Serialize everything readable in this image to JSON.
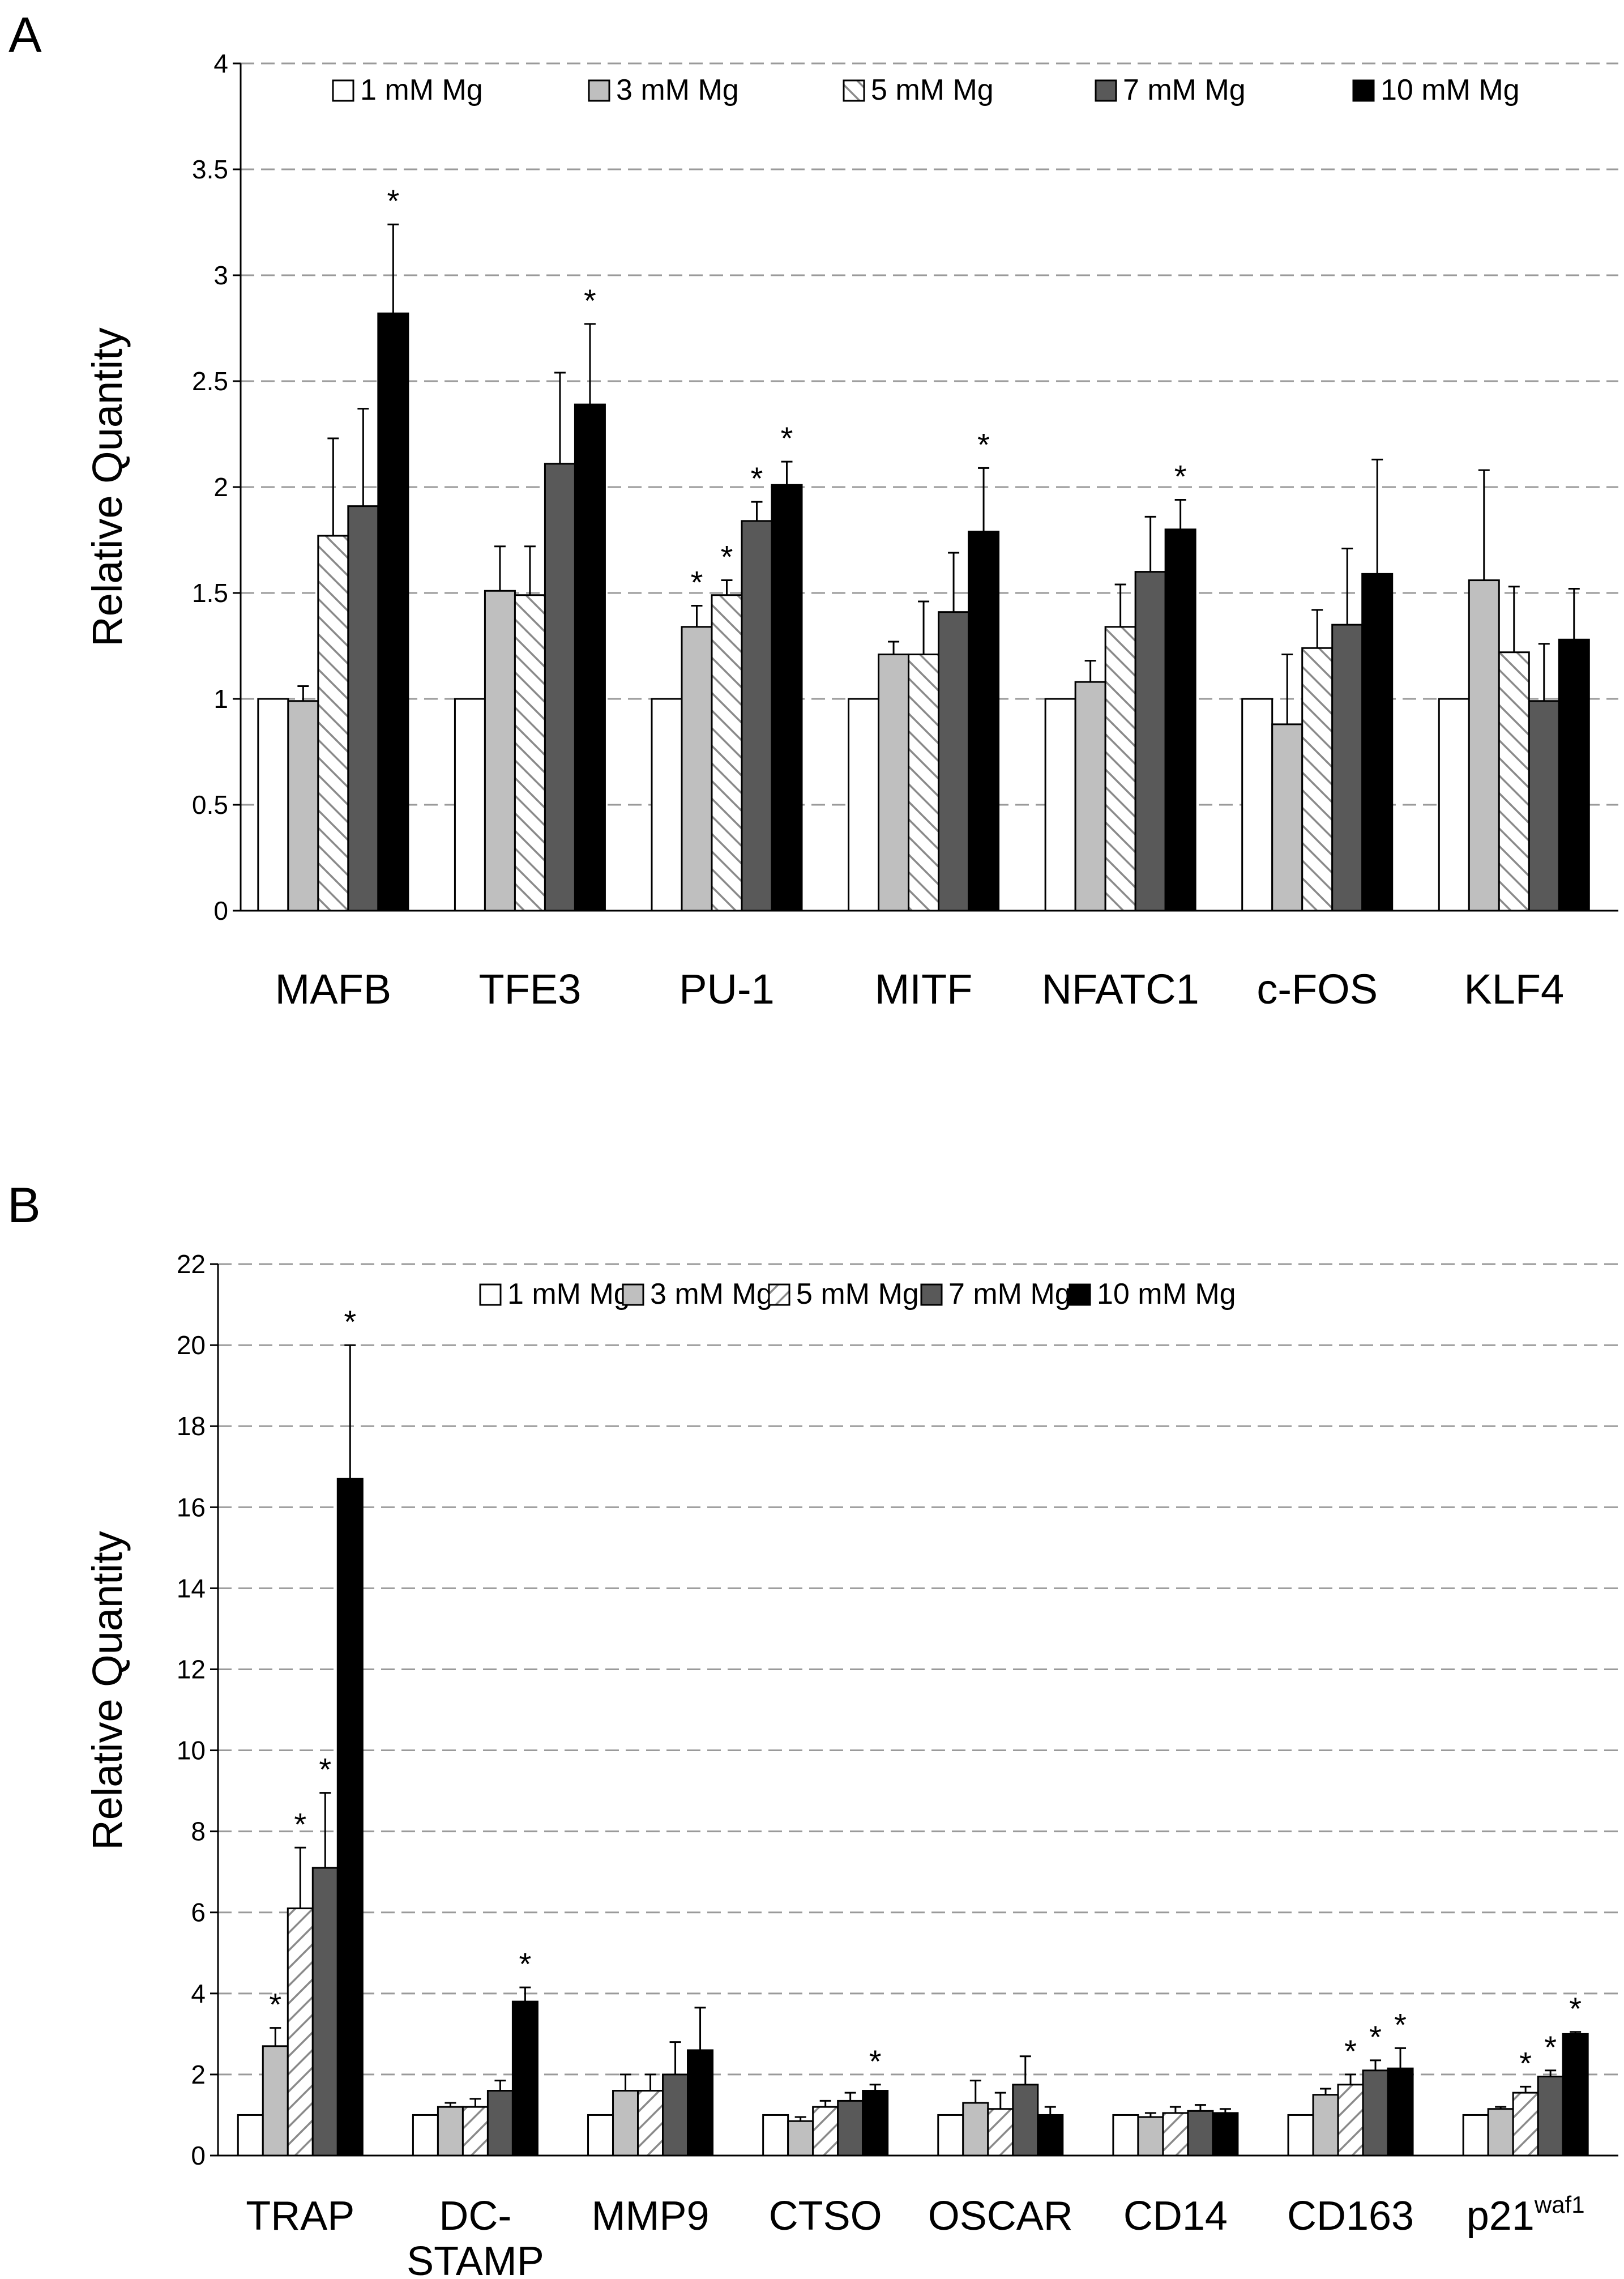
{
  "colors": {
    "1 mM Mg": "#ffffff",
    "3 mM Mg": "#bfbfbf",
    "5 mM Mg": "hatch",
    "7 mM Mg": "#595959",
    "10 mM Mg": "#000000",
    "grid": "#9a9a9a",
    "axis": "#000000"
  },
  "chart_data": [
    {
      "panel": "A",
      "type": "bar",
      "ylabel": "Relative Quantity",
      "ylim": [
        0,
        4
      ],
      "yticks": [
        "0",
        "0.5",
        "1",
        "1.5",
        "2",
        "2.5",
        "3",
        "3.5",
        "4"
      ],
      "grid": true,
      "legend": "top",
      "categories": [
        "MAFB",
        "TFE3",
        "PU-1",
        "MITF",
        "NFATC1",
        "c-FOS",
        "KLF4"
      ],
      "series": [
        {
          "name": "1 mM Mg",
          "values": [
            1,
            1,
            1,
            1,
            1,
            1,
            1
          ],
          "errors": [
            0,
            0,
            0,
            0,
            0,
            0,
            0
          ],
          "sig": [
            false,
            false,
            false,
            false,
            false,
            false,
            false
          ]
        },
        {
          "name": "3 mM Mg",
          "values": [
            0.99,
            1.51,
            1.34,
            1.21,
            1.08,
            0.88,
            1.56
          ],
          "errors": [
            0.07,
            0.21,
            0.1,
            0.06,
            0.1,
            0.33,
            0.52
          ],
          "sig": [
            false,
            false,
            true,
            false,
            false,
            false,
            false
          ]
        },
        {
          "name": "5 mM Mg",
          "values": [
            1.77,
            1.49,
            1.49,
            1.21,
            1.34,
            1.24,
            1.22
          ],
          "errors": [
            0.46,
            0.23,
            0.07,
            0.25,
            0.2,
            0.18,
            0.31
          ],
          "sig": [
            false,
            false,
            true,
            false,
            false,
            false,
            false
          ]
        },
        {
          "name": "7 mM Mg",
          "values": [
            1.91,
            2.11,
            1.84,
            1.41,
            1.6,
            1.35,
            0.99
          ],
          "errors": [
            0.46,
            0.43,
            0.09,
            0.28,
            0.26,
            0.36,
            0.27
          ],
          "sig": [
            false,
            false,
            true,
            false,
            false,
            false,
            false
          ]
        },
        {
          "name": "10 mM Mg",
          "values": [
            2.82,
            2.39,
            2.01,
            1.79,
            1.8,
            1.59,
            1.28
          ],
          "errors": [
            0.42,
            0.38,
            0.11,
            0.3,
            0.14,
            0.54,
            0.24
          ],
          "sig": [
            true,
            true,
            true,
            true,
            true,
            false,
            false
          ]
        }
      ]
    },
    {
      "panel": "B",
      "type": "bar",
      "ylabel": "Relative Quantity",
      "ylim": [
        0,
        22
      ],
      "yticks": [
        "0",
        "2",
        "4",
        "6",
        "8",
        "10",
        "12",
        "14",
        "16",
        "18",
        "20",
        "22"
      ],
      "grid": true,
      "legend": "top",
      "categories": [
        "TRAP",
        "DC-STAMP",
        "MMP9",
        "CTSO",
        "OSCAR",
        "CD14",
        "CD163",
        "p21waf1"
      ],
      "category_lines": [
        [
          "TRAP"
        ],
        [
          "DC-",
          "STAMP"
        ],
        [
          "MMP9"
        ],
        [
          "CTSO"
        ],
        [
          "OSCAR"
        ],
        [
          "CD14"
        ],
        [
          "CD163"
        ],
        [
          "p21"
        ]
      ],
      "category_superscripts": [
        "",
        "",
        "",
        "",
        "",
        "",
        "",
        "waf1"
      ],
      "series": [
        {
          "name": "1 mM Mg",
          "values": [
            1,
            1,
            1,
            1,
            1,
            1,
            1,
            1
          ],
          "errors": [
            0,
            0,
            0,
            0,
            0,
            0,
            0,
            0
          ],
          "sig": [
            false,
            false,
            false,
            false,
            false,
            false,
            false,
            false
          ]
        },
        {
          "name": "3 mM Mg",
          "values": [
            2.7,
            1.2,
            1.6,
            0.85,
            1.3,
            0.95,
            1.5,
            1.15
          ],
          "errors": [
            0.45,
            0.1,
            0.4,
            0.1,
            0.55,
            0.1,
            0.15,
            0.05
          ],
          "sig": [
            true,
            false,
            false,
            false,
            false,
            false,
            false,
            false
          ]
        },
        {
          "name": "5 mM Mg",
          "values": [
            6.1,
            1.2,
            1.6,
            1.2,
            1.15,
            1.05,
            1.75,
            1.55
          ],
          "errors": [
            1.5,
            0.2,
            0.4,
            0.15,
            0.4,
            0.15,
            0.25,
            0.15
          ],
          "sig": [
            true,
            false,
            false,
            false,
            false,
            false,
            true,
            true
          ]
        },
        {
          "name": "7 mM Mg",
          "values": [
            7.1,
            1.6,
            2.0,
            1.35,
            1.75,
            1.1,
            2.1,
            1.95
          ],
          "errors": [
            1.85,
            0.25,
            0.8,
            0.2,
            0.7,
            0.15,
            0.25,
            0.15
          ],
          "sig": [
            true,
            false,
            false,
            false,
            false,
            false,
            true,
            true
          ]
        },
        {
          "name": "10 mM Mg",
          "values": [
            16.7,
            3.8,
            2.6,
            1.6,
            1.0,
            1.05,
            2.15,
            3.0
          ],
          "errors": [
            3.3,
            0.35,
            1.05,
            0.15,
            0.2,
            0.1,
            0.5,
            0.05
          ],
          "sig": [
            true,
            true,
            false,
            true,
            false,
            false,
            true,
            true
          ]
        }
      ]
    }
  ],
  "panel_labels": [
    "A",
    "B"
  ],
  "significance_marker": "*"
}
